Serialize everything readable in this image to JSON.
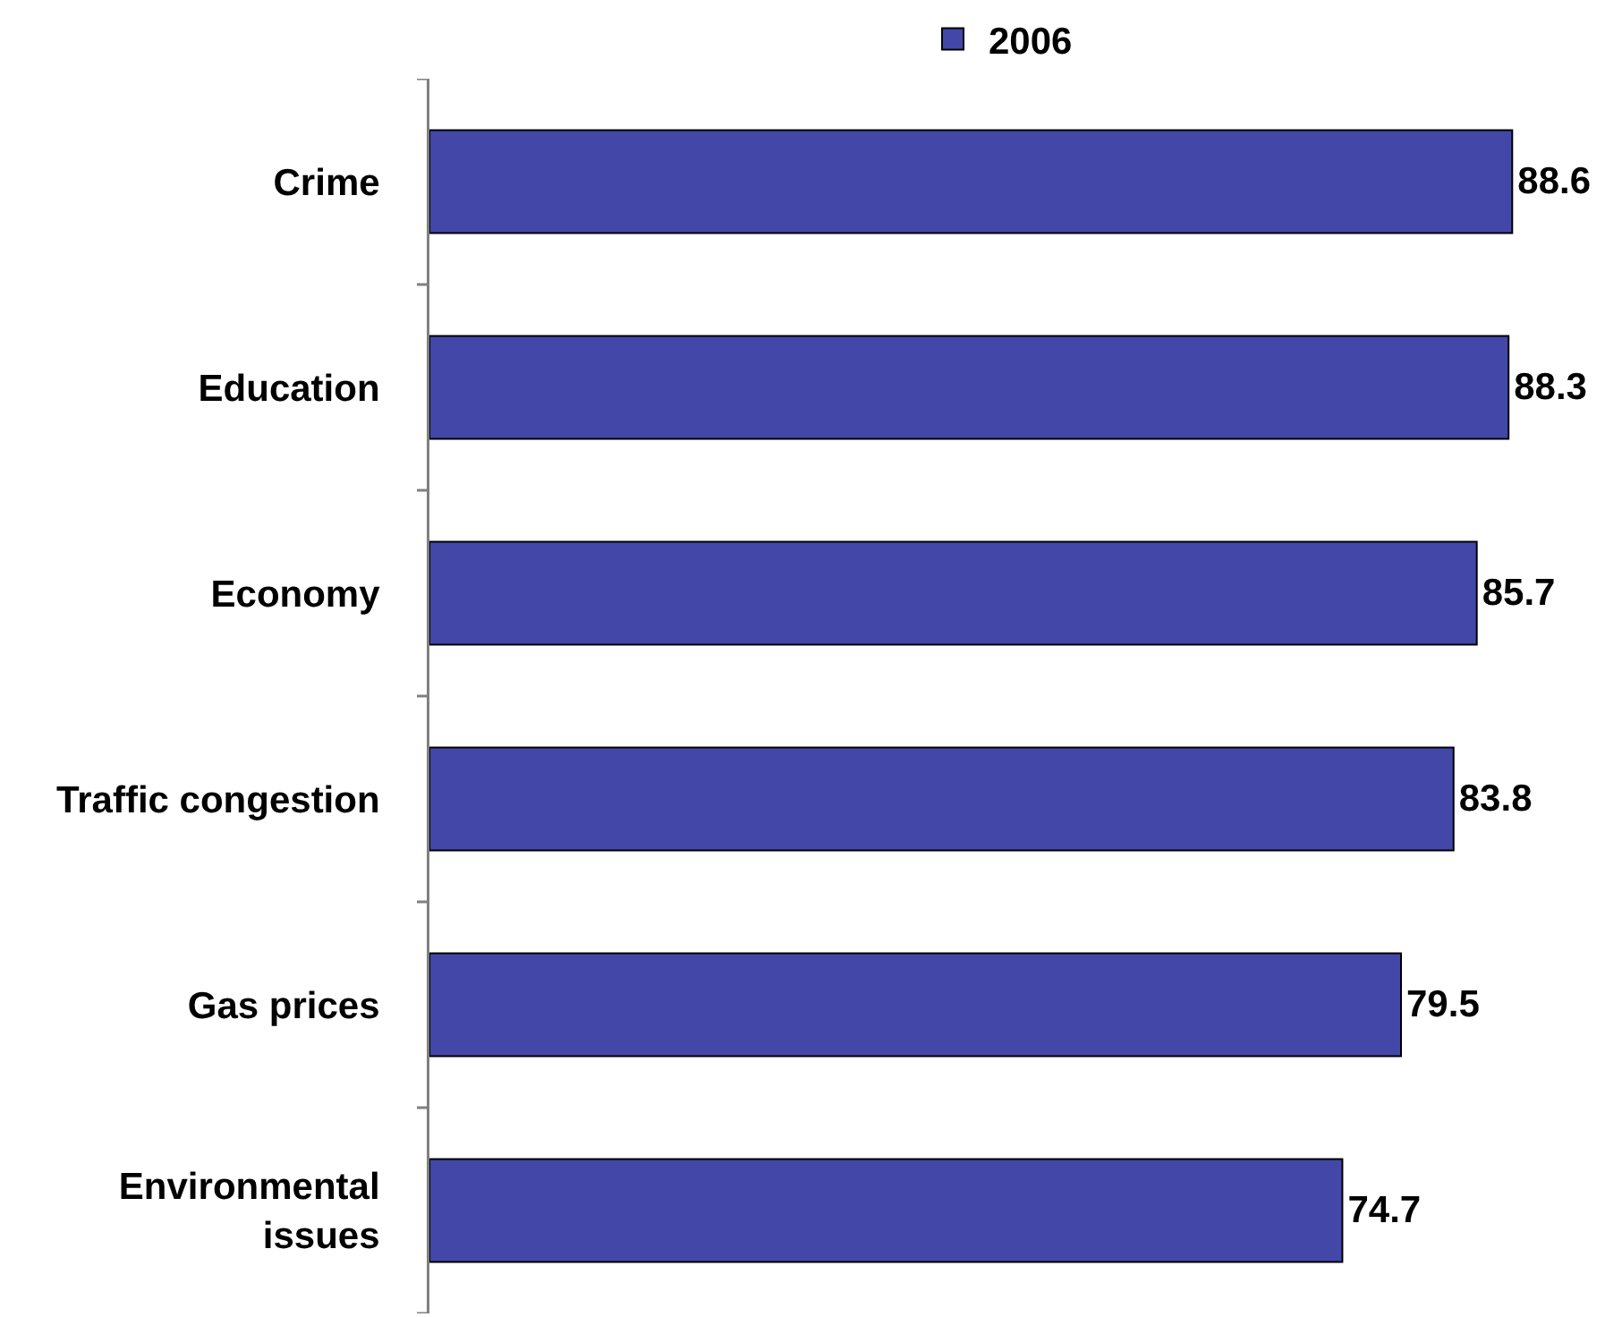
{
  "chart_data": {
    "type": "bar",
    "orientation": "horizontal",
    "legend": "top",
    "tick_labels": "y",
    "data_labels": true,
    "categories": [
      "Crime",
      "Education",
      "Economy",
      "Traffic congestion",
      "Gas prices",
      "Environmental issues"
    ],
    "series": [
      {
        "name": "2006",
        "color": "#4347a8",
        "values": [
          88.6,
          88.3,
          85.7,
          83.8,
          79.5,
          74.7
        ]
      }
    ]
  }
}
